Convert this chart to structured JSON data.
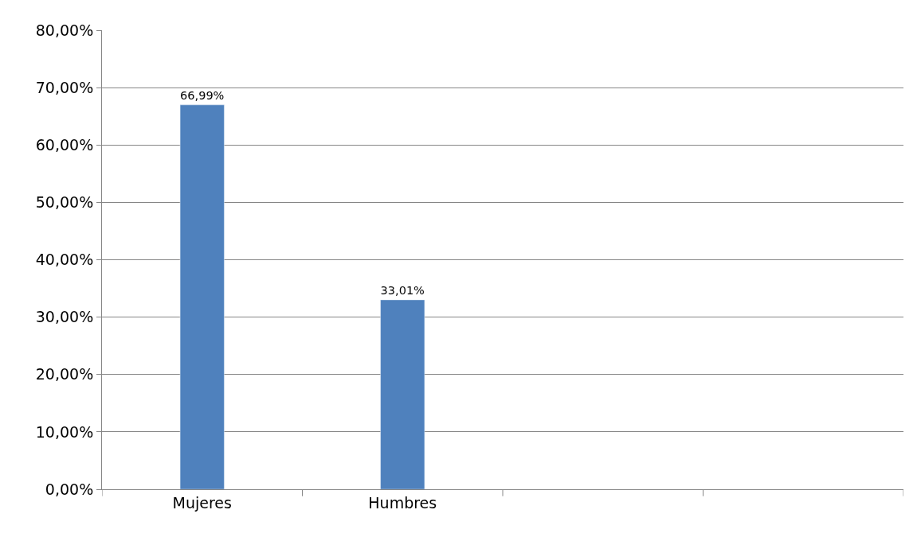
{
  "chart_data": {
    "type": "bar",
    "categories": [
      "Mujeres",
      "Humbres",
      null,
      null
    ],
    "series": [
      {
        "color": "#4f81bd",
        "values": [
          66.99,
          33.01,
          null,
          null
        ],
        "value_labels": [
          "66,99%",
          "33,01%",
          null,
          null
        ]
      }
    ],
    "ylim": [
      0,
      80
    ],
    "yticks": [
      {
        "value": 0,
        "label": "0,00%"
      },
      {
        "value": 10,
        "label": "10,00%"
      },
      {
        "value": 20,
        "label": "20,00%"
      },
      {
        "value": 30,
        "label": "30,00%"
      },
      {
        "value": 40,
        "label": "40,00%"
      },
      {
        "value": 50,
        "label": "50,00%"
      },
      {
        "value": 60,
        "label": "60,00%"
      },
      {
        "value": 70,
        "label": "70,00%"
      },
      {
        "value": 80,
        "label": "80,00%"
      }
    ],
    "grid": "y"
  }
}
